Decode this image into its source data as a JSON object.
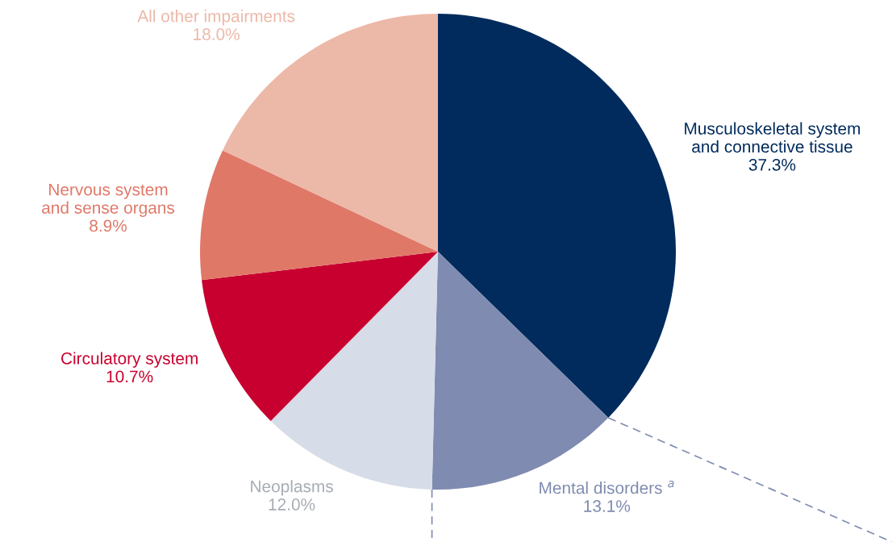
{
  "chart_data": {
    "type": "pie",
    "categories": [
      "Musculoskeletal system\nand connective tissue",
      "Mental disorders $^{a}$",
      "Neoplasms",
      "Circulatory system",
      "Nervous system\nand sense organs",
      "All other impairments"
    ],
    "values": [
      37.3,
      13.1,
      12.0,
      10.7,
      8.9,
      18.0
    ],
    "value_labels": [
      "37.3%",
      "13.1%",
      "12.0%",
      "10.7%",
      "8.9%",
      "18.0%"
    ],
    "colors": [
      "#002b5c",
      "#7f8bb0",
      "#d6dce8",
      "#c8002f",
      "#e07868",
      "#ecb8a8"
    ],
    "legend": false
  }
}
